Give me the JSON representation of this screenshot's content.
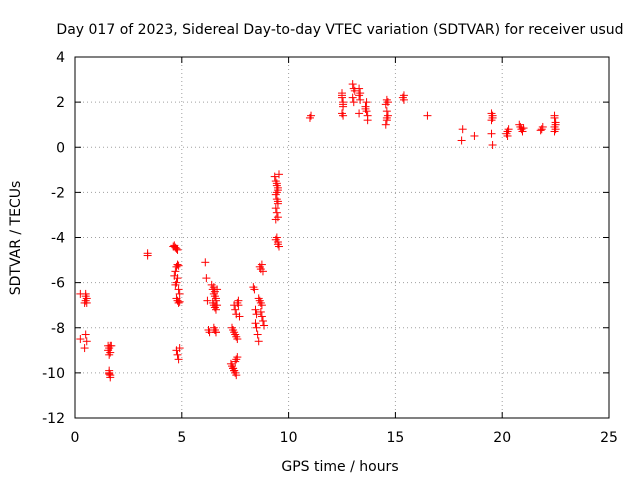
{
  "chart_data": {
    "type": "scatter",
    "title": "Day 017 of 2023, Sidereal Day-to-day VTEC variation (SDTVAR) for receiver usud",
    "xlabel": "GPS time / hours",
    "ylabel": "SDTVAR / TECUs",
    "xlim": [
      0,
      25
    ],
    "ylim": [
      -12,
      4
    ],
    "xticks": [
      0,
      5,
      10,
      15,
      20,
      25
    ],
    "yticks": [
      -12,
      -10,
      -8,
      -6,
      -4,
      -2,
      0,
      2,
      4
    ],
    "grid": true,
    "marker": "+",
    "color": "#ff0000",
    "series": [
      {
        "name": "SDTVAR",
        "x": [
          0.25,
          0.25,
          0.45,
          0.45,
          0.5,
          0.5,
          0.5,
          0.5,
          0.55,
          0.55,
          0.55,
          1.55,
          1.55,
          1.6,
          1.6,
          1.6,
          1.65,
          1.65,
          1.6,
          1.6,
          1.65,
          1.65,
          1.7,
          3.4,
          3.4,
          4.6,
          4.65,
          4.7,
          4.75,
          4.8,
          4.65,
          4.7,
          4.75,
          4.8,
          4.85,
          4.7,
          4.75,
          4.8,
          4.85,
          4.9,
          4.75,
          4.8,
          4.85,
          4.9,
          4.75,
          4.8,
          4.85,
          4.9,
          6.1,
          6.15,
          6.2,
          6.25,
          6.3,
          6.4,
          6.45,
          6.5,
          6.55,
          6.6,
          6.45,
          6.5,
          6.55,
          6.6,
          6.5,
          6.55,
          6.6,
          6.5,
          6.55,
          6.6,
          6.65,
          6.55,
          6.6,
          6.65,
          7.35,
          7.4,
          7.45,
          7.5,
          7.55,
          7.6,
          7.45,
          7.5,
          7.55,
          7.6,
          7.65,
          7.4,
          7.45,
          7.5,
          7.55,
          7.3,
          7.35,
          7.4,
          7.45,
          7.5,
          7.55,
          7.6,
          7.65,
          7.7,
          8.35,
          8.4,
          8.45,
          8.5,
          8.45,
          8.5,
          8.55,
          8.6,
          8.6,
          8.65,
          8.7,
          8.75,
          8.65,
          8.7,
          8.75,
          8.8,
          8.7,
          8.75,
          8.8,
          8.85,
          9.35,
          9.4,
          9.45,
          9.5,
          9.4,
          9.45,
          9.5,
          9.4,
          9.45,
          9.5,
          9.4,
          9.45,
          9.5,
          9.45,
          9.5,
          9.5,
          9.55,
          9.4,
          9.45,
          9.5,
          9.55,
          11.0,
          11.05,
          12.5,
          12.5,
          12.55,
          12.55,
          12.5,
          12.55,
          12.55,
          12.5,
          13.0,
          13.05,
          13.1,
          13.0,
          13.05,
          13.3,
          13.35,
          13.3,
          13.35,
          13.3,
          13.6,
          13.65,
          13.7,
          13.7,
          13.65,
          13.6,
          14.55,
          14.6,
          14.65,
          14.6,
          14.55,
          14.6,
          14.65,
          14.6,
          15.35,
          15.4,
          15.4,
          16.5,
          18.1,
          18.15,
          18.7,
          19.5,
          19.55,
          19.5,
          19.55,
          19.5,
          19.55,
          20.2,
          20.25,
          20.3,
          20.25,
          20.8,
          20.85,
          20.9,
          20.95,
          21.0,
          21.8,
          21.85,
          21.9,
          22.45,
          22.5,
          22.45,
          22.5,
          22.45,
          22.5,
          22.45
        ],
        "y": [
          -6.5,
          -8.5,
          -6.9,
          -8.9,
          -6.6,
          -6.8,
          -6.5,
          -8.3,
          -6.7,
          -6.9,
          -8.6,
          -8.8,
          -9.0,
          -9.2,
          -8.9,
          -10.0,
          -10.1,
          -10.2,
          -10.05,
          -9.9,
          -8.8,
          -9.1,
          -8.8,
          -4.7,
          -4.8,
          -4.4,
          -4.35,
          -4.45,
          -4.5,
          -4.55,
          -5.7,
          -5.5,
          -5.3,
          -5.2,
          -5.25,
          -6.1,
          -6.0,
          -5.8,
          -6.3,
          -6.5,
          -6.7,
          -6.8,
          -6.9,
          -6.85,
          -9.0,
          -9.2,
          -9.4,
          -8.9,
          -5.1,
          -5.8,
          -6.8,
          -8.1,
          -8.2,
          -6.1,
          -6.3,
          -6.5,
          -6.6,
          -6.7,
          -6.9,
          -7.0,
          -7.1,
          -7.2,
          -8.0,
          -8.1,
          -8.2,
          -6.2,
          -6.4,
          -6.8,
          -7.0,
          -8.1,
          -8.2,
          -6.3,
          -8.0,
          -8.1,
          -8.2,
          -8.3,
          -8.4,
          -8.5,
          -7.0,
          -7.2,
          -7.4,
          -6.9,
          -6.8,
          -9.8,
          -9.9,
          -10.0,
          -10.1,
          -9.6,
          -9.7,
          -9.8,
          -9.9,
          -9.5,
          -9.4,
          -9.3,
          -7.0,
          -7.5,
          -6.2,
          -6.3,
          -7.2,
          -7.4,
          -7.8,
          -8.0,
          -8.3,
          -8.6,
          -6.7,
          -6.8,
          -6.9,
          -7.0,
          -5.3,
          -5.4,
          -5.2,
          -5.5,
          -7.3,
          -7.5,
          -7.7,
          -7.9,
          -1.3,
          -1.5,
          -1.7,
          -1.9,
          -2.1,
          -2.3,
          -2.5,
          -2.7,
          -2.9,
          -3.1,
          -3.2,
          -2.0,
          -1.8,
          -4.0,
          -4.2,
          -4.3,
          -4.4,
          -4.1,
          -1.6,
          -2.4,
          -1.2,
          1.3,
          1.4,
          2.3,
          2.4,
          2.0,
          1.9,
          1.5,
          1.4,
          1.8,
          2.2,
          2.8,
          2.6,
          2.5,
          2.2,
          2.0,
          2.3,
          2.1,
          2.6,
          2.4,
          1.5,
          1.8,
          1.6,
          1.4,
          1.2,
          2.0,
          1.7,
          1.0,
          1.2,
          1.4,
          1.6,
          1.9,
          2.1,
          2.0,
          1.3,
          2.2,
          2.1,
          2.3,
          1.4,
          0.3,
          0.8,
          0.5,
          1.5,
          1.3,
          1.2,
          0.1,
          0.6,
          1.4,
          0.6,
          0.7,
          0.8,
          0.5,
          1.0,
          0.9,
          0.8,
          0.7,
          0.85,
          0.75,
          0.8,
          0.9,
          1.3,
          1.0,
          0.9,
          0.8,
          0.7,
          1.1,
          1.4
        ]
      }
    ]
  }
}
